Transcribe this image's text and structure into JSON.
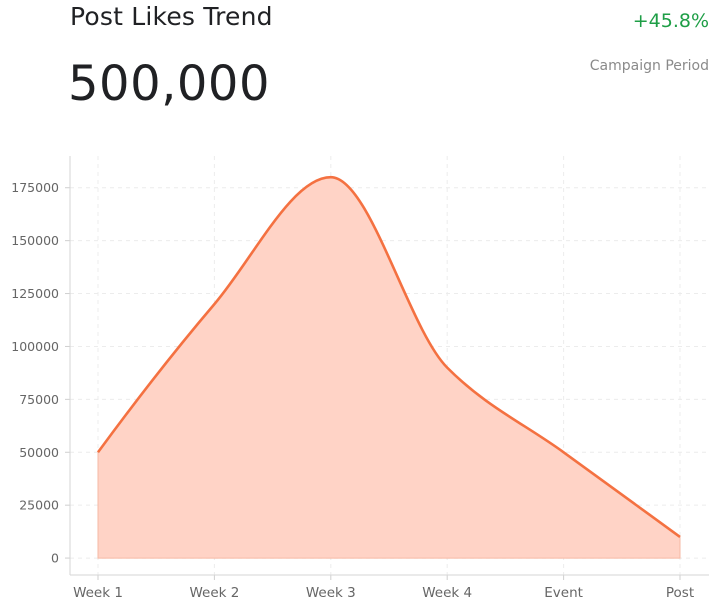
{
  "header": {
    "title": "Post Likes Trend",
    "total": "500,000",
    "change": "+45.8%",
    "period": "Campaign Period"
  },
  "colors": {
    "line": "#f47141",
    "fill": "#ffd3c6",
    "positive": "#1e9e46"
  },
  "chart_data": {
    "type": "area",
    "categories": [
      "Week 1",
      "Week 2",
      "Week 3",
      "Week 4",
      "Event",
      "Post"
    ],
    "values": [
      50000,
      120000,
      180000,
      90000,
      50000,
      10000
    ],
    "yticks": [
      0,
      25000,
      50000,
      75000,
      100000,
      125000,
      150000,
      175000
    ],
    "ylim": [
      -8000,
      190000
    ],
    "grid": true,
    "legend": "none"
  }
}
